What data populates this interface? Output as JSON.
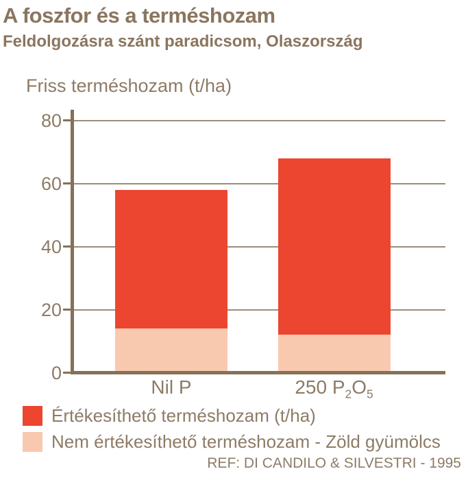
{
  "header": {
    "title": "A foszfor és a terméshozam",
    "subtitle": "Feldolgozásra szánt paradicsom, Olaszország"
  },
  "footer": {
    "reference": "REF: DI CANDILO & SILVESTRI - 1995"
  },
  "colors": {
    "marketable_red": "#ec4630",
    "non_marketable_pink": "#f9c9af",
    "title_brown": "#8a755e",
    "text_brown": "#8d7b66",
    "axis_brown": "#857157",
    "gridline_brown": "#9c8c77",
    "background": "#ffffff"
  },
  "chart_data": {
    "type": "bar",
    "stacked": true,
    "title": "A foszfor és a terméshozam",
    "subtitle": "Feldolgozásra szánt paradicsom, Olaszország",
    "axis_title": "Friss terméshozam (t/ha)",
    "xlabel": "",
    "ylabel": "Friss terméshozam (t/ha)",
    "categories": [
      "Nil P",
      "250 P₂O₅"
    ],
    "series": [
      {
        "name": "Értékesíthető terméshozam (t/ha)",
        "color": "#ec4630",
        "stack_position": "top",
        "values": [
          44,
          56
        ]
      },
      {
        "name": "Nem értékesíthető terméshozam - Zöld gyümölcs",
        "color": "#f9c9af",
        "stack_position": "bottom",
        "values": [
          14,
          12
        ]
      }
    ],
    "totals": [
      58,
      68
    ],
    "ylim": [
      0,
      80
    ],
    "yticks": [
      0,
      20,
      40,
      60,
      80
    ],
    "grid": true,
    "legend_position": "bottom-left",
    "reference": "REF: DI CANDILO & SILVESTRI - 1995"
  }
}
